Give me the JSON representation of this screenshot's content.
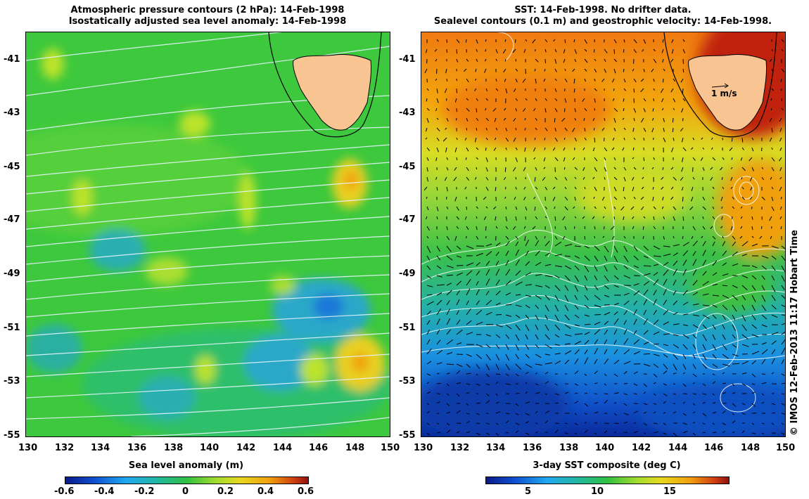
{
  "left_panel": {
    "title_line1": "Atmospheric pressure contours (2 hPa): 14-Feb-1998",
    "title_line2": "Isostatically adjusted sea level anomaly: 14-Feb-1998",
    "colorbar": {
      "title": "Sea level anomaly (m)",
      "tick_labels": [
        "-0.6",
        "-0.4",
        "-0.2",
        "0",
        "0.2",
        "0.4",
        "0.6"
      ]
    }
  },
  "right_panel": {
    "title_line1": "SST: 14-Feb-1998. No drifter data.",
    "title_line2": "Sealevel contours (0.1 m) and geostrophic velocity: 14-Feb-1998.",
    "velocity_scale_label": "1 m/s",
    "colorbar": {
      "title": "3-day SST composite (deg C)",
      "tick_labels": [
        "5",
        "10",
        "15"
      ]
    }
  },
  "axes": {
    "lon_labels": [
      "130",
      "132",
      "134",
      "136",
      "138",
      "140",
      "142",
      "144",
      "146",
      "148",
      "150"
    ],
    "lat_labels": [
      "-41",
      "-43",
      "-45",
      "-47",
      "-49",
      "-51",
      "-53",
      "-55"
    ]
  },
  "credit": "© IMOS 12-Feb-2013 11:17 Hobart Time",
  "colors": {
    "land": "#f7c492",
    "ocean_green": "#3cc83c",
    "contour": "#ffffff"
  }
}
